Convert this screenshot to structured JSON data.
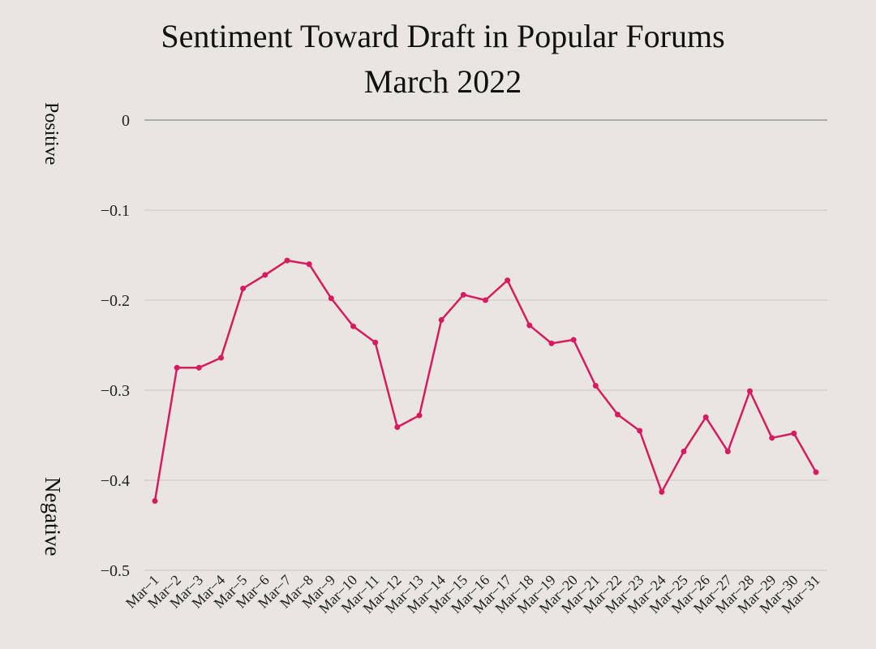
{
  "chart_data": {
    "type": "line",
    "title": "Sentiment Toward Draft in Popular Forums",
    "subtitle": "March 2022",
    "ylabel_top": "Positive",
    "ylabel_bottom": "Negative",
    "xlabel": "",
    "ylim": [
      -0.5,
      0
    ],
    "yticks": [
      0,
      -0.1,
      -0.2,
      -0.3,
      -0.4,
      -0.5
    ],
    "ytick_labels": [
      "0",
      "−0.1",
      "−0.2",
      "−0.3",
      "−0.4",
      "−0.5"
    ],
    "grid": true,
    "line_color": "#d81b60",
    "categories": [
      "Mar−1",
      "Mar−2",
      "Mar−3",
      "Mar−4",
      "Mar−5",
      "Mar−6",
      "Mar−7",
      "Mar−8",
      "Mar−9",
      "Mar−10",
      "Mar−11",
      "Mar−12",
      "Mar−13",
      "Mar−14",
      "Mar−15",
      "Mar−16",
      "Mar−17",
      "Mar−18",
      "Mar−19",
      "Mar−20",
      "Mar−21",
      "Mar−22",
      "Mar−23",
      "Mar−24",
      "Mar−25",
      "Mar−26",
      "Mar−27",
      "Mar−28",
      "Mar−29",
      "Mar−30",
      "Mar−31"
    ],
    "values": [
      -0.423,
      -0.275,
      -0.275,
      -0.264,
      -0.187,
      -0.172,
      -0.156,
      -0.16,
      -0.198,
      -0.229,
      -0.247,
      -0.341,
      -0.328,
      -0.222,
      -0.194,
      -0.2,
      -0.178,
      -0.228,
      -0.248,
      -0.244,
      -0.295,
      -0.327,
      -0.345,
      -0.413,
      -0.368,
      -0.33,
      -0.368,
      -0.301,
      -0.353,
      -0.348,
      -0.391
    ]
  }
}
